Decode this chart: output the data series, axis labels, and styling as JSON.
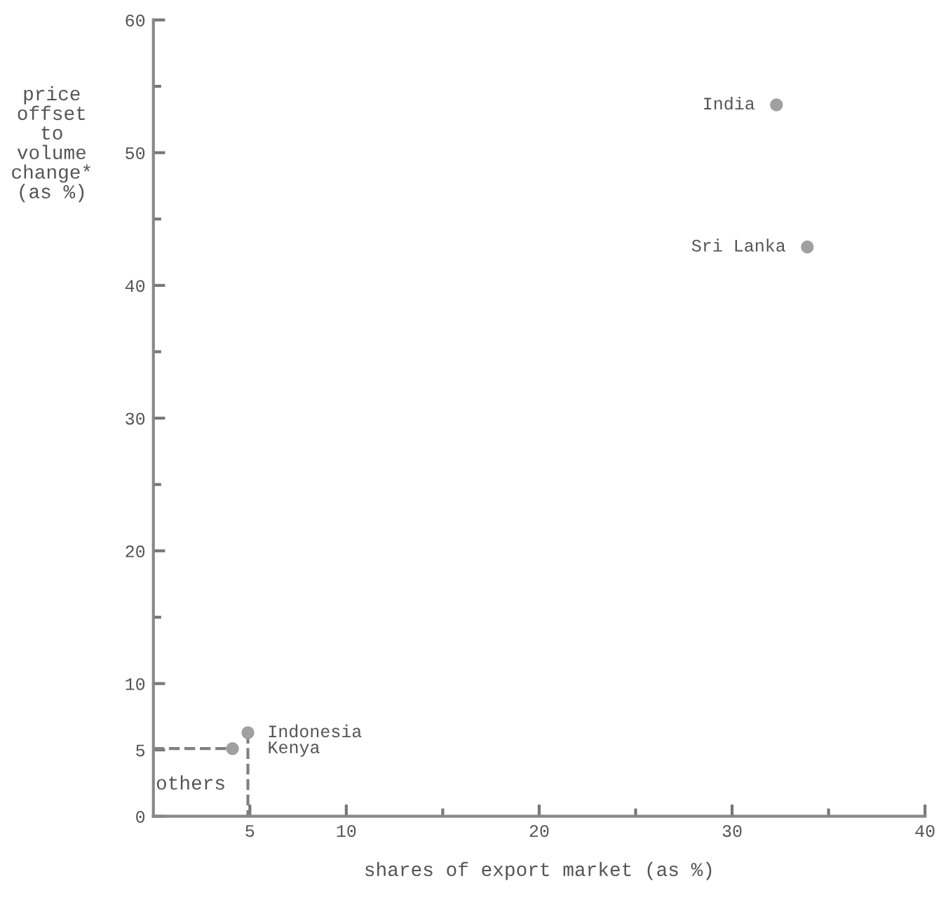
{
  "chart_data": {
    "type": "scatter",
    "xlabel": "shares of export market (as %)",
    "ylabel": "price\noffset\nto\nvolume\nchange*\n(as %)",
    "xlim": [
      0,
      40
    ],
    "ylim": [
      0,
      60
    ],
    "xticks": [
      5,
      10,
      {
        "value": 15,
        "label": null
      },
      20,
      {
        "value": 25,
        "label": null
      },
      30,
      {
        "value": 35,
        "label": null
      },
      40
    ],
    "yticks": [
      0,
      5,
      10,
      {
        "value": 15,
        "label": null
      },
      20,
      {
        "value": 25,
        "label": null
      },
      30,
      {
        "value": 35,
        "label": null
      },
      40,
      {
        "value": 45,
        "label": null
      },
      50,
      {
        "value": 55,
        "label": null
      },
      60
    ],
    "grid": false,
    "legend": false,
    "marker": "circle",
    "series": [
      {
        "color": "#a0a0a0",
        "x": [
          32.3,
          33.9,
          4.9,
          4.1
        ],
        "values": [
          53.6,
          42.9,
          6.3,
          5.1
        ]
      },
      {
        "type": "line",
        "line_style": "dashed",
        "marker": "none",
        "color": "#808080",
        "x": [
          0,
          4.1
        ],
        "values": [
          5.1,
          5.1
        ]
      },
      {
        "type": "line",
        "line_style": "dashed",
        "marker": "none",
        "color": "#808080",
        "x": [
          4.9,
          4.9
        ],
        "values": [
          6.3,
          0
        ]
      }
    ],
    "annotations": [
      {
        "text": "India",
        "x": 32.3,
        "y": 53.6
      },
      {
        "text": "Sri Lanka",
        "x": 33.9,
        "y": 42.9
      },
      {
        "text": "Indonesia",
        "x": 4.9,
        "y": 6.3
      },
      {
        "text": "Kenya",
        "x": 4.1,
        "y": 5.1
      },
      "others"
    ]
  }
}
